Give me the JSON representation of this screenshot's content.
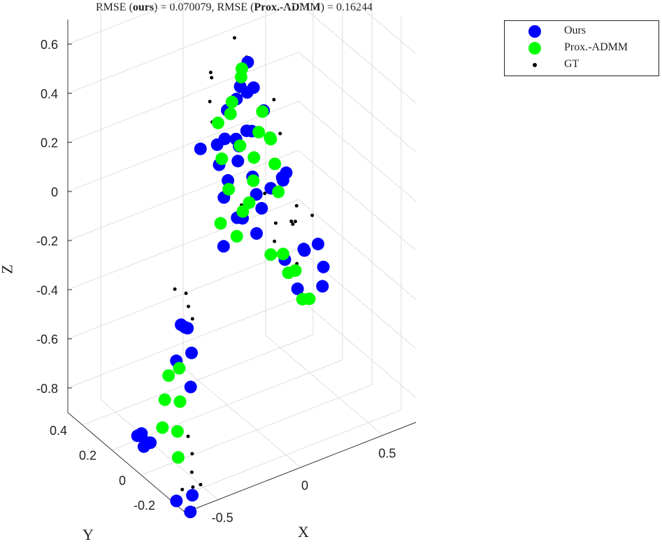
{
  "title": {
    "prefix": "RMSE (",
    "ours_bold": "ours",
    "middle": ") = 0.070079, RMSE (",
    "prox_bold": "Prox.-ADMM",
    "suffix": ") = 0.16244"
  },
  "legend": [
    {
      "label": "Ours",
      "color": "#0000ff",
      "marker": "big-dot"
    },
    {
      "label": "Prox.-ADMM",
      "color": "#00ff00",
      "marker": "big-dot"
    },
    {
      "label": "GT",
      "color": "#000000",
      "marker": "small-dot"
    }
  ],
  "axes": {
    "xlabel": "X",
    "ylabel": "Y",
    "zlabel": "Z",
    "x_ticks": [
      "-0.5",
      "0",
      "0.5"
    ],
    "y_ticks": [
      "-0.2",
      "0",
      "0.2",
      "0.4"
    ],
    "z_ticks": [
      "-0.8",
      "-0.6",
      "-0.4",
      "-0.2",
      "0",
      "0.2",
      "0.4",
      "0.6"
    ],
    "grid": true
  },
  "chart_data": {
    "type": "scatter",
    "projection": "3d",
    "title": "RMSE (ours) = 0.070079, RMSE (Prox.-ADMM) = 0.16244",
    "xlabel": "X",
    "ylabel": "Y",
    "zlabel": "Z",
    "xlim": [
      -0.7,
      0.7
    ],
    "ylim": [
      -0.3,
      0.5
    ],
    "zlim": [
      -0.9,
      0.7
    ],
    "legend_placement": "top-right outside",
    "grid": true,
    "series": [
      {
        "name": "Ours",
        "color": "#0000ff",
        "points": [
          [
            -0.01,
            0.1,
            0.45
          ],
          [
            0.05,
            0.12,
            0.4
          ],
          [
            -0.05,
            0.08,
            0.42
          ],
          [
            0.08,
            0.15,
            0.5
          ],
          [
            0.0,
            0.2,
            0.3
          ],
          [
            0.06,
            0.1,
            0.25
          ],
          [
            -0.08,
            0.05,
            0.28
          ],
          [
            0.1,
            0.18,
            0.2
          ],
          [
            -0.12,
            0.12,
            0.15
          ],
          [
            0.02,
            0.05,
            0.1
          ],
          [
            -0.04,
            0.15,
            0.05
          ],
          [
            0.07,
            0.08,
            0.0
          ],
          [
            -0.02,
            0.2,
            -0.05
          ],
          [
            0.12,
            0.1,
            -0.08
          ],
          [
            -0.1,
            0.02,
            -0.02
          ],
          [
            0.04,
            0.14,
            -0.12
          ],
          [
            -0.06,
            0.06,
            0.18
          ],
          [
            0.09,
            0.22,
            0.12
          ],
          [
            0.2,
            0.05,
            0.05
          ],
          [
            0.25,
            0.1,
            0.0
          ],
          [
            0.22,
            0.15,
            -0.05
          ],
          [
            0.18,
            0.0,
            0.1
          ],
          [
            -0.15,
            0.1,
            0.25
          ],
          [
            -0.18,
            0.18,
            0.2
          ],
          [
            0.15,
            0.12,
            0.3
          ],
          [
            0.16,
            0.2,
            0.35
          ],
          [
            0.03,
            0.25,
            0.15
          ],
          [
            0.0,
            0.0,
            -0.1
          ],
          [
            -0.2,
            0.0,
            -0.1
          ],
          [
            0.38,
            0.1,
            -0.32
          ],
          [
            0.42,
            0.15,
            -0.35
          ],
          [
            0.45,
            0.05,
            -0.38
          ],
          [
            0.35,
            0.2,
            -0.4
          ],
          [
            0.4,
            0.0,
            -0.42
          ],
          [
            0.48,
            0.12,
            -0.33
          ],
          [
            0.32,
            0.08,
            -0.45
          ],
          [
            -0.33,
            0.1,
            -0.45
          ],
          [
            -0.3,
            0.15,
            -0.48
          ],
          [
            -0.35,
            0.05,
            -0.52
          ],
          [
            -0.38,
            0.12,
            -0.58
          ],
          [
            -0.4,
            0.0,
            -0.62
          ],
          [
            -0.28,
            0.2,
            -0.5
          ],
          [
            -0.55,
            0.15,
            -0.9
          ],
          [
            -0.58,
            0.1,
            -0.85
          ],
          [
            -0.52,
            0.2,
            -0.88
          ],
          [
            -0.6,
            0.05,
            -0.82
          ],
          [
            -0.5,
            0.25,
            -0.92
          ],
          [
            -0.62,
            -0.15,
            -0.95
          ],
          [
            -0.58,
            -0.2,
            -0.98
          ],
          [
            -0.55,
            -0.18,
            -0.93
          ]
        ]
      },
      {
        "name": "Prox.-ADMM",
        "color": "#00ff00",
        "points": [
          [
            0.0,
            0.1,
            0.52
          ],
          [
            0.04,
            0.15,
            0.45
          ],
          [
            -0.06,
            0.1,
            0.4
          ],
          [
            0.08,
            0.05,
            0.35
          ],
          [
            -0.1,
            0.15,
            0.3
          ],
          [
            0.02,
            0.2,
            0.28
          ],
          [
            0.12,
            0.12,
            0.22
          ],
          [
            -0.14,
            0.08,
            0.2
          ],
          [
            0.06,
            0.18,
            0.15
          ],
          [
            -0.02,
            0.0,
            0.12
          ],
          [
            0.22,
            0.15,
            0.15
          ],
          [
            0.26,
            0.2,
            0.12
          ],
          [
            0.2,
            0.1,
            0.08
          ],
          [
            0.18,
            0.22,
            0.05
          ],
          [
            -0.08,
            0.1,
            0.05
          ],
          [
            0.0,
            0.05,
            0.0
          ],
          [
            -0.12,
            0.0,
            -0.08
          ],
          [
            0.05,
            0.15,
            -0.1
          ],
          [
            0.15,
            0.02,
            0.02
          ],
          [
            -0.04,
            0.2,
            -0.15
          ],
          [
            0.25,
            0.1,
            -0.3
          ],
          [
            0.28,
            0.05,
            -0.35
          ],
          [
            0.3,
            0.12,
            -0.4
          ],
          [
            0.32,
            0.0,
            -0.45
          ],
          [
            0.22,
            0.15,
            -0.32
          ],
          [
            0.35,
            0.08,
            -0.5
          ],
          [
            -0.38,
            0.1,
            -0.6
          ],
          [
            -0.4,
            0.15,
            -0.65
          ],
          [
            -0.42,
            0.05,
            -0.7
          ],
          [
            -0.45,
            0.12,
            -0.72
          ],
          [
            -0.48,
            0.0,
            -0.78
          ],
          [
            -0.5,
            0.08,
            -0.8
          ],
          [
            -0.52,
            -0.05,
            -0.85
          ]
        ]
      },
      {
        "name": "GT",
        "color": "#000000",
        "points": [
          [
            0.0,
            0.15,
            0.62
          ],
          [
            -0.1,
            0.2,
            0.48
          ],
          [
            0.1,
            0.18,
            0.5
          ],
          [
            -0.15,
            0.15,
            0.4
          ],
          [
            0.15,
            0.05,
            0.38
          ],
          [
            -0.05,
            0.25,
            0.42
          ],
          [
            0.12,
            0.25,
            0.32
          ],
          [
            0.2,
            0.18,
            0.25
          ],
          [
            0.25,
            0.12,
            0.18
          ],
          [
            -0.18,
            0.1,
            0.35
          ],
          [
            0.05,
            0.0,
            0.05
          ],
          [
            -0.02,
            0.08,
            -0.02
          ],
          [
            0.22,
            0.0,
            -0.12
          ],
          [
            0.28,
            0.05,
            -0.15
          ],
          [
            0.3,
            0.1,
            -0.18
          ],
          [
            0.25,
            0.15,
            -0.2
          ],
          [
            0.32,
            -0.02,
            -0.1
          ],
          [
            0.18,
            0.08,
            -0.22
          ],
          [
            0.35,
            0.12,
            -0.14
          ],
          [
            0.2,
            -0.05,
            -0.25
          ],
          [
            -0.25,
            0.2,
            -0.38
          ],
          [
            -0.28,
            0.15,
            -0.4
          ],
          [
            -0.3,
            0.1,
            -0.42
          ],
          [
            -0.3,
            0.22,
            -0.36
          ],
          [
            -0.46,
            -0.05,
            -0.78
          ],
          [
            -0.48,
            -0.1,
            -0.82
          ],
          [
            -0.5,
            -0.12,
            -0.88
          ],
          [
            -0.52,
            -0.15,
            -0.92
          ],
          [
            -0.54,
            -0.1,
            -0.95
          ],
          [
            -0.56,
            -0.2,
            -0.97
          ],
          [
            -0.5,
            -0.18,
            -0.9
          ]
        ]
      }
    ]
  }
}
